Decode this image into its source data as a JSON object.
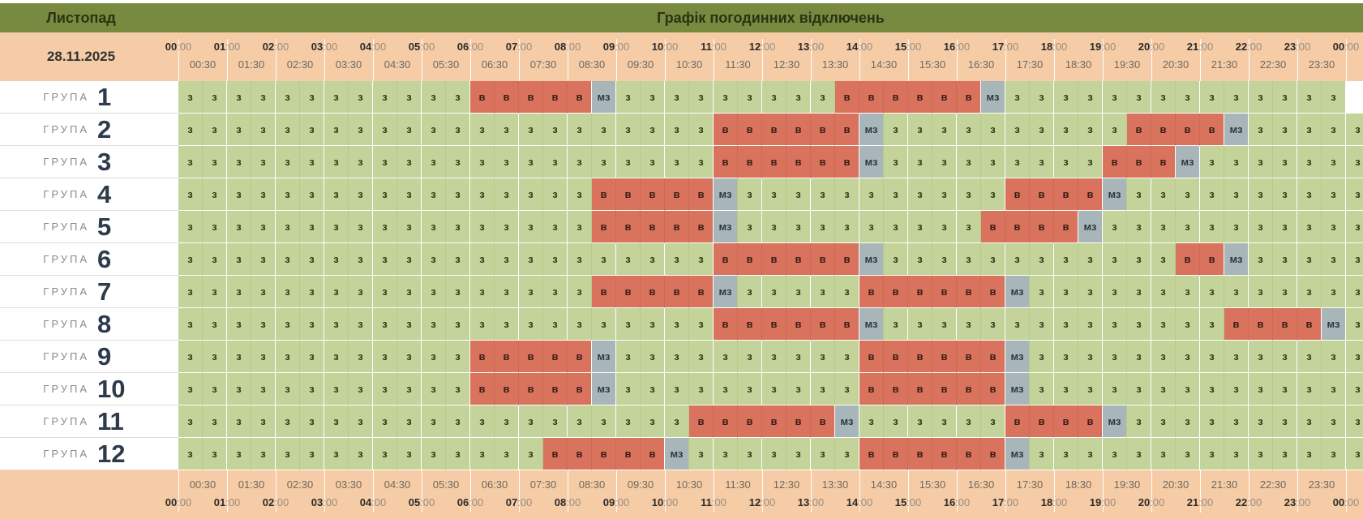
{
  "header": {
    "month": "Листопад",
    "title": "Графік погодинних відключень",
    "date": "28.11.2025"
  },
  "timeline": {
    "hours": [
      "00",
      "01",
      "02",
      "03",
      "04",
      "05",
      "06",
      "07",
      "08",
      "09",
      "10",
      "11",
      "12",
      "13",
      "14",
      "15",
      "16",
      "17",
      "18",
      "19",
      "20",
      "21",
      "22",
      "23",
      "00"
    ],
    "hour_suffix": ":00",
    "half_hours": [
      "00:30",
      "01:30",
      "02:30",
      "03:30",
      "04:30",
      "05:30",
      "06:30",
      "07:30",
      "08:30",
      "09:30",
      "10:30",
      "11:30",
      "12:30",
      "13:30",
      "14:30",
      "15:30",
      "16:30",
      "17:30",
      "18:30",
      "19:30",
      "20:30",
      "21:30",
      "22:30",
      "23:30"
    ]
  },
  "group_word": "ГРУПА",
  "state_labels": {
    "z": "з",
    "v": "в",
    "m": "мз"
  },
  "colors": {
    "header_bar": "#788a3f",
    "timeline_bg": "#f5cca6",
    "on": "#c3d39a",
    "off": "#d9735e",
    "maybe": "#a8b6b9"
  },
  "groups": [
    {
      "number": "1",
      "slots": "zzzzzzzzzzzzvvvvvmzzzzzzzzzvvvvvvmzzzzzzzzzzzzzz"
    },
    {
      "number": "2",
      "slots": "zzzzzzzzzzzzzzzzzzzzzzvvvvvvmzzzzzzzzzzvvvvmzzzzz"
    },
    {
      "number": "3",
      "slots": "zzzzzzzzzzzzzzzzzzzzzzvvvvvvmzzzzzzzzzvvvmzzzzzzz"
    },
    {
      "number": "4",
      "slots": "zzzzzzzzzzzzzzzzzvvvvvmzzzzzzzzzzzvvvvmzzzzzzzzzz"
    },
    {
      "number": "5",
      "slots": "zzzzzzzzzzzzzzzzzvvvvvmzzzzzzzzzzvvvvmzzzzzzzzzzz"
    },
    {
      "number": "6",
      "slots": "zzzzzzzzzzzzzzzzzzzzzzvvvvvvmzzzzzzzzzzzzvvmzzzzz"
    },
    {
      "number": "7",
      "slots": "zzzzzzzzzzzzzzzzzvvvvvmzzzzzvvvvvvmzzzzzzzzzzzzzz"
    },
    {
      "number": "8",
      "slots": "zzzzzzzzzzzzzzzzzzzzzzvvvvvvmzzzzzzzzzzzzzzvvvvmz"
    },
    {
      "number": "9",
      "slots": "zzzzzzzzzzzzvvvvvmzzzzzzzzzzvvvvvvmzzzzzzzzzzzzzz"
    },
    {
      "number": "10",
      "slots": "zzzzzzzzzzzzvvvvvmzzzzzzzzzzvvvvvvmzzzzzzzzzzzzzz"
    },
    {
      "number": "11",
      "slots": "zzzzzzzzzzzzzzzzzzzzzvvvvvvmzzzzzzvvvvmzzzzzzzzzz"
    },
    {
      "number": "12",
      "slots": "zzzzzzzzzzzzzzzvvvvvmzzzzzzzvvvvvvmzzzzzzzzzzzzzz"
    }
  ]
}
